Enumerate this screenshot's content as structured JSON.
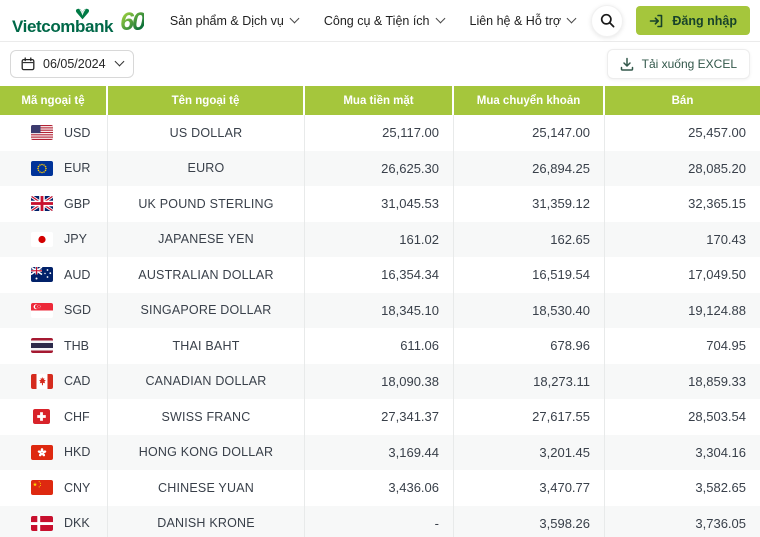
{
  "header": {
    "brand": "Vietcombank",
    "anniversary": "60",
    "nav_items": [
      {
        "label": "Sản phẩm & Dịch vụ"
      },
      {
        "label": "Công cụ & Tiện ích"
      },
      {
        "label": "Liên hệ & Hỗ trợ"
      }
    ],
    "login_label": "Đăng nhập"
  },
  "toolbar": {
    "date_value": "06/05/2024",
    "download_label": "Tải xuống EXCEL"
  },
  "icons": {
    "search": "magnifier",
    "login": "login-arrow",
    "date": "calendar",
    "date_expand": "chevron-down",
    "download": "download-arrow",
    "nav_expand": "chevron-down"
  },
  "colors": {
    "accent_green": "#a5c63c",
    "brand_green": "#006848",
    "link_green": "#33584b",
    "row_alt": "#f7f8f8"
  },
  "table": {
    "columns": [
      "Mã ngoại tệ",
      "Tên ngoại tệ",
      "Mua tiền mặt",
      "Mua chuyển khoản",
      "Bán"
    ],
    "rows": [
      {
        "flag": "us",
        "code": "USD",
        "name": "US DOLLAR",
        "cash": "25,117.00",
        "transfer": "25,147.00",
        "sell": "25,457.00"
      },
      {
        "flag": "eu",
        "code": "EUR",
        "name": "EURO",
        "cash": "26,625.30",
        "transfer": "26,894.25",
        "sell": "28,085.20"
      },
      {
        "flag": "gb",
        "code": "GBP",
        "name": "UK POUND STERLING",
        "cash": "31,045.53",
        "transfer": "31,359.12",
        "sell": "32,365.15"
      },
      {
        "flag": "jp",
        "code": "JPY",
        "name": "JAPANESE YEN",
        "cash": "161.02",
        "transfer": "162.65",
        "sell": "170.43"
      },
      {
        "flag": "au",
        "code": "AUD",
        "name": "AUSTRALIAN DOLLAR",
        "cash": "16,354.34",
        "transfer": "16,519.54",
        "sell": "17,049.50"
      },
      {
        "flag": "sg",
        "code": "SGD",
        "name": "SINGAPORE DOLLAR",
        "cash": "18,345.10",
        "transfer": "18,530.40",
        "sell": "19,124.88"
      },
      {
        "flag": "th",
        "code": "THB",
        "name": "THAI BAHT",
        "cash": "611.06",
        "transfer": "678.96",
        "sell": "704.95"
      },
      {
        "flag": "ca",
        "code": "CAD",
        "name": "CANADIAN DOLLAR",
        "cash": "18,090.38",
        "transfer": "18,273.11",
        "sell": "18,859.33"
      },
      {
        "flag": "ch",
        "code": "CHF",
        "name": "SWISS FRANC",
        "cash": "27,341.37",
        "transfer": "27,617.55",
        "sell": "28,503.54"
      },
      {
        "flag": "hk",
        "code": "HKD",
        "name": "HONG KONG DOLLAR",
        "cash": "3,169.44",
        "transfer": "3,201.45",
        "sell": "3,304.16"
      },
      {
        "flag": "cn",
        "code": "CNY",
        "name": "CHINESE YUAN",
        "cash": "3,436.06",
        "transfer": "3,470.77",
        "sell": "3,582.65"
      },
      {
        "flag": "dk",
        "code": "DKK",
        "name": "DANISH KRONE",
        "cash": "-",
        "transfer": "3,598.26",
        "sell": "3,736.05"
      }
    ]
  }
}
